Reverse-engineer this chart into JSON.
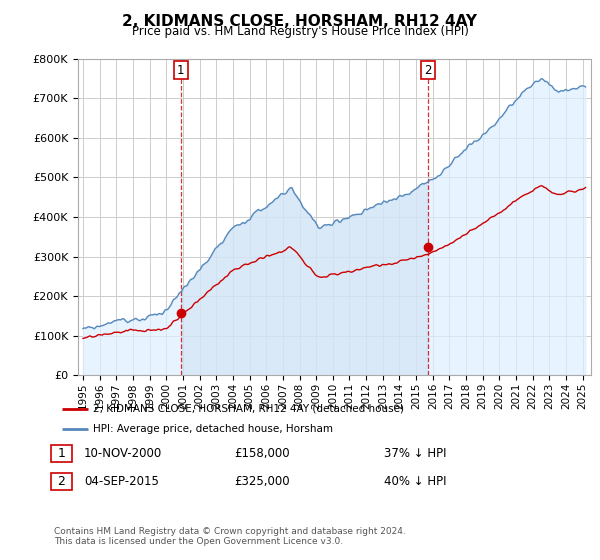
{
  "title": "2, KIDMANS CLOSE, HORSHAM, RH12 4AY",
  "subtitle": "Price paid vs. HM Land Registry's House Price Index (HPI)",
  "legend_line1": "2, KIDMANS CLOSE, HORSHAM, RH12 4AY (detached house)",
  "legend_line2": "HPI: Average price, detached house, Horsham",
  "transaction1_label": "1",
  "transaction1_date": "10-NOV-2000",
  "transaction1_price": "£158,000",
  "transaction1_hpi": "37% ↓ HPI",
  "transaction2_label": "2",
  "transaction2_date": "04-SEP-2015",
  "transaction2_price": "£325,000",
  "transaction2_hpi": "40% ↓ HPI",
  "footer": "Contains HM Land Registry data © Crown copyright and database right 2024.\nThis data is licensed under the Open Government Licence v3.0.",
  "red_color": "#cc0000",
  "blue_color": "#5588bb",
  "blue_fill_color": "#ddeeff",
  "grid_color": "#cccccc",
  "background_color": "#ffffff",
  "ylim": [
    0,
    800000
  ],
  "yticks": [
    0,
    100000,
    200000,
    300000,
    400000,
    500000,
    600000,
    700000,
    800000
  ],
  "xlim_start": 1994.7,
  "xlim_end": 2025.5
}
